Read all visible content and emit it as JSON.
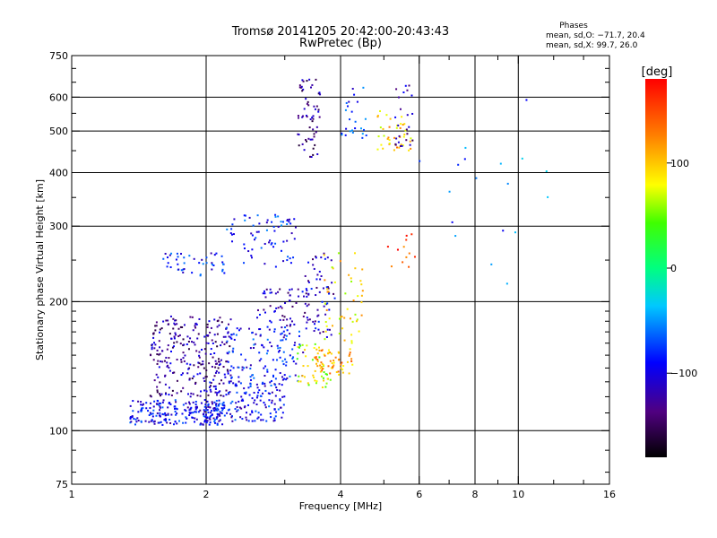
{
  "chart_data": {
    "type": "scatter",
    "title": "Tromsø 20141205 20:42:00-20:43:43",
    "subtitle": "RwPretec (Bp)",
    "xlabel": "Frequency [MHz]",
    "ylabel": "Stationary phase Virtual Height [km]",
    "x_scale": "log",
    "y_scale": "log",
    "xlim": [
      1,
      16
    ],
    "ylim": [
      75,
      750
    ],
    "x_ticks": [
      1,
      2,
      4,
      6,
      8,
      10,
      16
    ],
    "x_tick_labels": [
      "1",
      "2",
      "4",
      "6",
      "8",
      "10",
      "16"
    ],
    "y_ticks": [
      75,
      100,
      200,
      300,
      400,
      500,
      600,
      750
    ],
    "y_tick_labels": [
      "75",
      "100",
      "200",
      "300",
      "400",
      "500",
      "600",
      "750"
    ],
    "grid": true,
    "stats": {
      "heading": "Phases",
      "line1": "mean, sd,O: −71.7, 20.4",
      "line2": "mean, sd,X:  99.7, 26.0"
    },
    "colorbar": {
      "unit_label": "[deg]",
      "range": [
        -180,
        180
      ],
      "ticks": [
        100,
        0,
        -100
      ],
      "tick_labels": [
        "100",
        "0",
        "−100"
      ]
    },
    "clusters": [
      {
        "x": [
          1.35,
          2.2
        ],
        "y": [
          103,
          118
        ],
        "phase": -95,
        "count": 220
      },
      {
        "x": [
          1.5,
          2.3
        ],
        "y": [
          120,
          185
        ],
        "phase": -125,
        "count": 260
      },
      {
        "x": [
          2.0,
          3.0
        ],
        "y": [
          105,
          130
        ],
        "phase": -92,
        "count": 160
      },
      {
        "x": [
          2.2,
          3.3
        ],
        "y": [
          130,
          175
        ],
        "phase": -90,
        "count": 130
      },
      {
        "x": [
          1.6,
          2.2
        ],
        "y": [
          230,
          260
        ],
        "phase": -88,
        "count": 45
      },
      {
        "x": [
          2.2,
          3.2
        ],
        "y": [
          240,
          320
        ],
        "phase": -85,
        "count": 70
      },
      {
        "x": [
          2.6,
          3.4
        ],
        "y": [
          175,
          215
        ],
        "phase": -115,
        "count": 60
      },
      {
        "x": [
          3.3,
          3.9
        ],
        "y": [
          165,
          260
        ],
        "phase": -110,
        "count": 60
      },
      {
        "x": [
          3.2,
          3.8
        ],
        "y": [
          125,
          160
        ],
        "phase": 70,
        "count": 45
      },
      {
        "x": [
          3.5,
          4.3
        ],
        "y": [
          135,
          155
        ],
        "phase": 110,
        "count": 60
      },
      {
        "x": [
          3.6,
          4.5
        ],
        "y": [
          160,
          260
        ],
        "phase": 90,
        "count": 50
      },
      {
        "x": [
          3.2,
          3.6
        ],
        "y": [
          430,
          660
        ],
        "phase": -130,
        "count": 60
      },
      {
        "x": [
          4.0,
          4.6
        ],
        "y": [
          480,
          640
        ],
        "phase": -80,
        "count": 25
      },
      {
        "x": [
          4.8,
          5.8
        ],
        "y": [
          440,
          560
        ],
        "phase": 100,
        "count": 40
      },
      {
        "x": [
          5.3,
          5.8
        ],
        "y": [
          460,
          640
        ],
        "phase": -120,
        "count": 25
      },
      {
        "x": [
          5.0,
          5.9
        ],
        "y": [
          240,
          290
        ],
        "phase": 150,
        "count": 12
      },
      {
        "x": [
          6.0,
          12.0
        ],
        "y": [
          200,
          640
        ],
        "phase": -60,
        "count": 18
      }
    ]
  }
}
